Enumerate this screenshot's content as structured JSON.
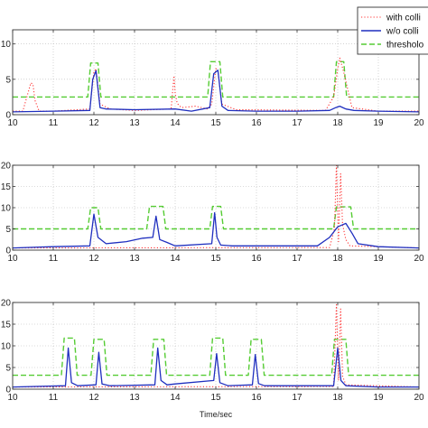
{
  "chart_data": [
    {
      "type": "line",
      "x_range": [
        10,
        20
      ],
      "ylim": [
        0,
        12
      ],
      "y_ticks": [
        0,
        5,
        10
      ],
      "x_ticks": [
        10,
        11,
        12,
        13,
        14,
        15,
        16,
        17,
        18,
        19,
        20
      ],
      "grid": true,
      "legend_position": "top-right",
      "series": [
        {
          "name": "with collision",
          "color": "#ff3333",
          "style": "dotted",
          "x": [
            10.0,
            10.25,
            10.35,
            10.45,
            10.5,
            10.55,
            10.65,
            11.0,
            11.9,
            12.0,
            12.05,
            12.15,
            12.4,
            13.0,
            13.9,
            13.97,
            14.0,
            14.05,
            14.15,
            14.5,
            14.8,
            14.9,
            15.0,
            15.05,
            15.15,
            15.5,
            17.7,
            17.9,
            18.0,
            18.05,
            18.15,
            18.35,
            19.0,
            20.0
          ],
          "y": [
            0.5,
            0.5,
            2.5,
            4.5,
            4.3,
            2.0,
            0.5,
            0.5,
            0.8,
            6.0,
            6.5,
            1.5,
            0.8,
            0.6,
            0.8,
            5.5,
            3.0,
            1.6,
            1.0,
            1.2,
            0.8,
            1.5,
            6.5,
            6.3,
            1.5,
            0.7,
            0.6,
            2.5,
            6.5,
            8.0,
            6.0,
            1.0,
            0.5,
            0.5
          ]
        },
        {
          "name": "w/o collision",
          "color": "#1f2fbf",
          "style": "solid",
          "x": [
            10.0,
            11.0,
            11.9,
            11.97,
            12.05,
            12.15,
            12.3,
            13.0,
            14.0,
            14.4,
            14.85,
            14.95,
            15.05,
            15.15,
            15.3,
            16.0,
            17.0,
            17.8,
            17.95,
            18.05,
            18.2,
            18.4,
            19.0,
            20.0
          ],
          "y": [
            0.4,
            0.5,
            0.6,
            5.0,
            6.2,
            1.0,
            0.8,
            0.7,
            0.8,
            0.5,
            1.0,
            5.8,
            6.3,
            1.2,
            0.6,
            0.5,
            0.5,
            0.6,
            1.0,
            1.2,
            0.8,
            0.6,
            0.5,
            0.4
          ]
        },
        {
          "name": "threshold",
          "color": "#55cc33",
          "style": "dashed",
          "x": [
            10.0,
            11.85,
            11.92,
            12.1,
            12.17,
            14.8,
            14.87,
            15.1,
            15.17,
            17.9,
            17.97,
            18.15,
            18.22,
            20.0
          ],
          "y": [
            2.5,
            2.5,
            7.3,
            7.3,
            2.5,
            2.5,
            7.5,
            7.5,
            2.5,
            2.5,
            7.5,
            7.5,
            2.5,
            2.5
          ]
        }
      ]
    },
    {
      "type": "line",
      "x_range": [
        10,
        20
      ],
      "ylim": [
        0,
        20
      ],
      "y_ticks": [
        0,
        5,
        10,
        15,
        20
      ],
      "x_ticks": [
        10,
        11,
        12,
        13,
        14,
        15,
        16,
        17,
        18,
        19,
        20
      ],
      "grid": true,
      "series": [
        {
          "name": "with collision",
          "color": "#ff3333",
          "style": "dotted",
          "x": [
            10.0,
            17.8,
            17.92,
            17.97,
            18.02,
            18.07,
            18.12,
            18.2,
            18.3,
            20.0
          ],
          "y": [
            0.5,
            0.6,
            5.0,
            20.0,
            2.0,
            18.0,
            6.0,
            2.5,
            1.0,
            0.5
          ]
        },
        {
          "name": "w/o collision",
          "color": "#1f2fbf",
          "style": "solid",
          "x": [
            10.0,
            11.0,
            11.9,
            12.0,
            12.1,
            12.3,
            12.8,
            13.2,
            13.45,
            13.53,
            13.62,
            13.8,
            14.0,
            14.9,
            14.97,
            15.03,
            15.12,
            15.4,
            16.0,
            17.0,
            17.5,
            17.8,
            18.0,
            18.2,
            18.35,
            18.5,
            19.0,
            20.0
          ],
          "y": [
            0.5,
            0.8,
            1.0,
            8.5,
            3.0,
            1.5,
            2.0,
            2.8,
            3.0,
            8.0,
            2.5,
            1.8,
            1.0,
            1.5,
            8.8,
            3.0,
            1.2,
            1.0,
            1.0,
            1.0,
            1.0,
            3.0,
            5.5,
            6.3,
            4.0,
            1.5,
            0.8,
            0.5
          ]
        },
        {
          "name": "threshold",
          "color": "#55cc33",
          "style": "dashed",
          "x": [
            10.0,
            11.85,
            11.92,
            12.1,
            12.17,
            13.3,
            13.37,
            13.7,
            13.77,
            14.85,
            14.92,
            15.12,
            15.19,
            17.9,
            17.97,
            18.32,
            18.39,
            20.0
          ],
          "y": [
            5.0,
            5.0,
            10.0,
            10.0,
            5.0,
            5.0,
            10.3,
            10.3,
            5.0,
            5.0,
            10.3,
            10.3,
            5.0,
            5.0,
            10.2,
            10.2,
            5.0,
            5.0
          ]
        }
      ]
    },
    {
      "type": "line",
      "x_range": [
        10,
        20
      ],
      "ylim": [
        0,
        20
      ],
      "y_ticks": [
        0,
        5,
        10,
        15,
        20
      ],
      "x_ticks": [
        10,
        11,
        12,
        13,
        14,
        15,
        16,
        17,
        18,
        19,
        20
      ],
      "xlabel": "Time/sec",
      "grid": true,
      "series": [
        {
          "name": "with collision",
          "color": "#ff3333",
          "style": "dotted",
          "x": [
            10.0,
            17.9,
            17.97,
            18.02,
            18.07,
            18.12,
            18.2,
            20.0
          ],
          "y": [
            0.5,
            0.6,
            19.5,
            2.0,
            18.5,
            3.0,
            1.0,
            0.5
          ]
        },
        {
          "name": "w/o collision",
          "color": "#1f2fbf",
          "style": "solid",
          "x": [
            10.0,
            11.3,
            11.37,
            11.45,
            11.6,
            12.05,
            12.12,
            12.2,
            12.4,
            13.5,
            13.57,
            13.65,
            13.8,
            14.0,
            14.95,
            15.02,
            15.1,
            15.3,
            15.9,
            15.97,
            16.05,
            16.2,
            17.9,
            18.0,
            18.08,
            18.2,
            19.0,
            20.0
          ],
          "y": [
            0.5,
            0.8,
            9.5,
            1.5,
            0.8,
            1.0,
            8.5,
            1.2,
            0.8,
            1.0,
            9.5,
            2.0,
            1.0,
            1.2,
            2.0,
            8.2,
            1.5,
            0.8,
            1.0,
            8.0,
            1.3,
            0.8,
            0.8,
            9.5,
            2.0,
            0.8,
            0.5,
            0.5
          ]
        },
        {
          "name": "threshold",
          "color": "#55cc33",
          "style": "dashed",
          "x": [
            10.0,
            11.2,
            11.27,
            11.52,
            11.59,
            11.93,
            12.0,
            12.25,
            12.32,
            13.4,
            13.47,
            13.72,
            13.79,
            14.85,
            14.92,
            15.17,
            15.24,
            15.8,
            15.87,
            16.12,
            16.19,
            17.85,
            17.92,
            18.2,
            18.27,
            20.0
          ],
          "y": [
            3.2,
            3.2,
            11.8,
            11.8,
            3.2,
            3.2,
            11.5,
            11.5,
            3.2,
            3.2,
            11.5,
            11.5,
            3.2,
            3.2,
            11.8,
            11.8,
            3.2,
            3.2,
            11.5,
            11.5,
            3.2,
            3.2,
            11.5,
            11.5,
            3.2,
            3.2
          ]
        }
      ]
    }
  ],
  "legend": {
    "entries": [
      {
        "label": "with colli",
        "color": "#ff3333",
        "style": "dotted"
      },
      {
        "label": "w/o colli",
        "color": "#1f2fbf",
        "style": "solid"
      },
      {
        "label": "thresholo",
        "color": "#55cc33",
        "style": "dashed"
      }
    ]
  }
}
